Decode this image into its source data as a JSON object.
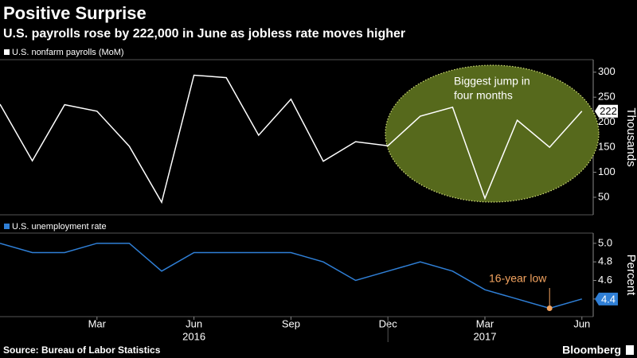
{
  "header": {
    "title": "Positive Surprise",
    "subtitle": "U.S. payrolls rose by 222,000 in June as jobless rate moves higher"
  },
  "source": "Source: Bureau of Labor Statistics",
  "brand": "Bloomberg",
  "chart_data": [
    {
      "type": "line",
      "y_label": "Thousands",
      "series": [
        {
          "name": "U.S. nonfarm payrolls (MoM)",
          "color": "#ffffff",
          "values": [
            236,
            123,
            235,
            222,
            152,
            40,
            294,
            289,
            174,
            246,
            122,
            161,
            153,
            212,
            230,
            48,
            204,
            150,
            222
          ]
        }
      ],
      "ylim": [
        15,
        325
      ],
      "yticks": [
        50,
        100,
        150,
        200,
        250,
        300
      ],
      "annotation": [
        "Biggest jump in",
        "four months"
      ]
    },
    {
      "type": "line",
      "y_label": "Percent",
      "categories": [
        null,
        null,
        null,
        "Mar",
        null,
        null,
        "Jun",
        null,
        null,
        "Sep",
        null,
        null,
        "Dec",
        null,
        null,
        "Mar",
        null,
        null,
        "Jun"
      ],
      "years": [
        "2016",
        "2017"
      ],
      "series": [
        {
          "name": "U.S. unemployment rate",
          "color": "#2f7fd6",
          "values": [
            5.0,
            4.9,
            4.9,
            5.0,
            5.0,
            4.7,
            4.9,
            4.9,
            4.9,
            4.9,
            4.8,
            4.6,
            4.7,
            4.8,
            4.7,
            4.5,
            4.4,
            4.3,
            4.4
          ]
        }
      ],
      "ylim": [
        4.21,
        5.11
      ],
      "yticks": [
        4.4,
        4.6,
        4.8,
        5.0
      ],
      "annotation": "16-year low"
    }
  ]
}
